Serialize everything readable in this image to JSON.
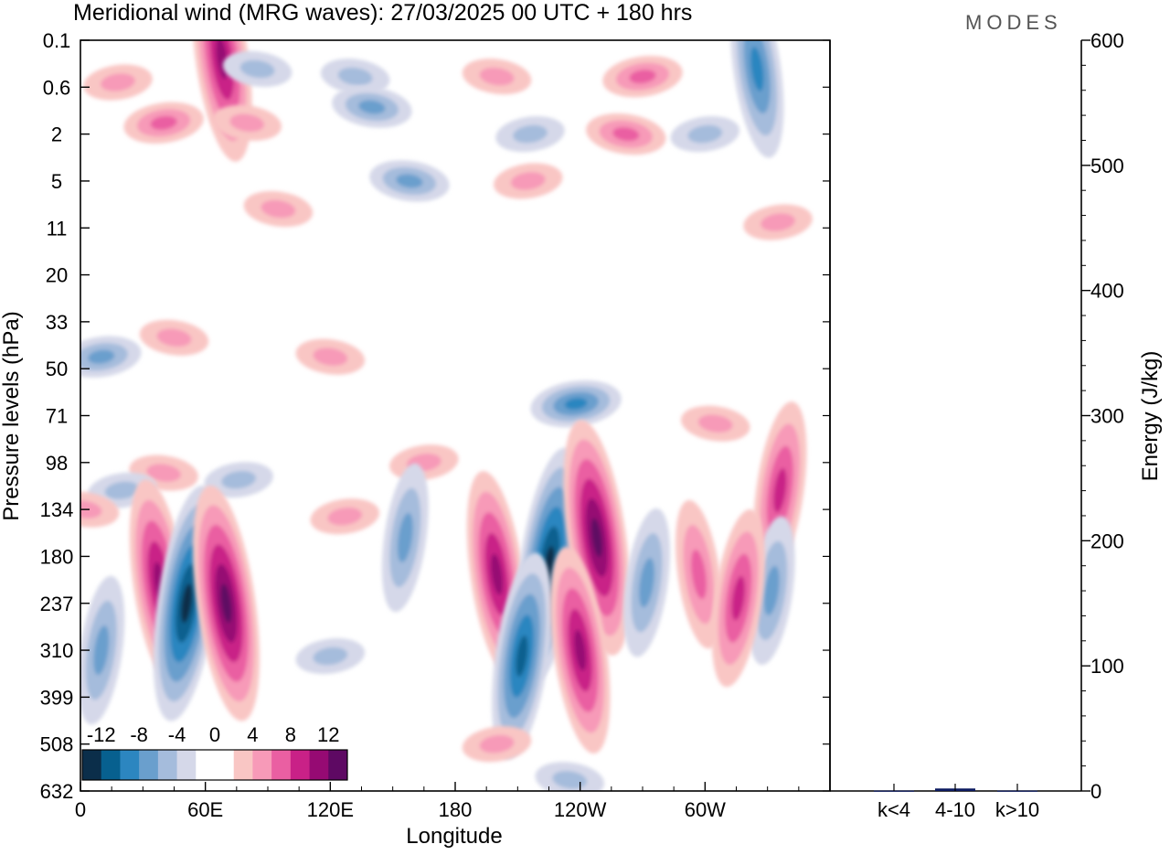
{
  "header": {
    "title": "Meridional wind (MRG waves):  27/03/2025  00 UTC  + 180 hrs",
    "logo": "MODES"
  },
  "chart_data": [
    {
      "type": "heatmap",
      "title": "Meridional wind (MRG waves):  27/03/2025  00 UTC  + 180 hrs",
      "xlabel": "Longitude",
      "ylabel": "Pressure levels (hPa)",
      "x_ticks": [
        "0",
        "60E",
        "120E",
        "180",
        "120W",
        "60W"
      ],
      "x_tick_degrees": [
        0,
        60,
        120,
        180,
        240,
        300
      ],
      "xlim": [
        0,
        360
      ],
      "y_ticks": [
        "0.1",
        "0.6",
        "2",
        "5",
        "11",
        "20",
        "33",
        "50",
        "71",
        "98",
        "134",
        "180",
        "237",
        "310",
        "399",
        "508",
        "632"
      ],
      "y_reversed": true,
      "colorbar": {
        "labels": [
          "-12",
          "-8",
          "-4",
          "0",
          "4",
          "8",
          "12"
        ],
        "colors": [
          "#0b2e4a",
          "#07608f",
          "#2c86c0",
          "#6a9fcd",
          "#a5bcdc",
          "#d5d8e9",
          "#ffffff",
          "#ffffff",
          "#f9c6c4",
          "#f79ab8",
          "#ea5fa2",
          "#c92187",
          "#960a73",
          "#5e0963"
        ]
      },
      "contours": [
        {
          "lon": 68,
          "level": "0.2",
          "value": 10
        },
        {
          "lon": 85,
          "level": "0.3",
          "value": -4
        },
        {
          "lon": 325,
          "level": "0.3",
          "value": -8
        },
        {
          "lon": 200,
          "level": "0.4",
          "value": 4
        },
        {
          "lon": 18,
          "level": "0.5",
          "value": 3
        },
        {
          "lon": 132,
          "level": "0.4",
          "value": -3
        },
        {
          "lon": 270,
          "level": "0.4",
          "value": 6
        },
        {
          "lon": 140,
          "level": "1",
          "value": -5
        },
        {
          "lon": 40,
          "level": "1.5",
          "value": 5
        },
        {
          "lon": 80,
          "level": "1.5",
          "value": 3
        },
        {
          "lon": 216,
          "level": "2",
          "value": -4
        },
        {
          "lon": 262,
          "level": "2",
          "value": 5
        },
        {
          "lon": 300,
          "level": "2",
          "value": -3
        },
        {
          "lon": 158,
          "level": "5",
          "value": -6
        },
        {
          "lon": 215,
          "level": "5",
          "value": 3
        },
        {
          "lon": 95,
          "level": "8",
          "value": 4
        },
        {
          "lon": 335,
          "level": "10",
          "value": 3
        },
        {
          "lon": 45,
          "level": "38",
          "value": 3
        },
        {
          "lon": 10,
          "level": "45",
          "value": -5
        },
        {
          "lon": 120,
          "level": "45",
          "value": 3
        },
        {
          "lon": 238,
          "level": "65",
          "value": -7
        },
        {
          "lon": 305,
          "level": "75",
          "value": 3
        },
        {
          "lon": 165,
          "level": "98",
          "value": 3
        },
        {
          "lon": 40,
          "level": "105",
          "value": 3
        },
        {
          "lon": 76,
          "level": "110",
          "value": -4
        },
        {
          "lon": 336,
          "level": "118",
          "value": 8
        },
        {
          "lon": 20,
          "level": "118",
          "value": -3
        },
        {
          "lon": 2,
          "level": "134",
          "value": 3
        },
        {
          "lon": 127,
          "level": "140",
          "value": 3
        },
        {
          "lon": 156,
          "level": "160",
          "value": -5
        },
        {
          "lon": 200,
          "level": "200",
          "value": 10
        },
        {
          "lon": 225,
          "level": "190",
          "value": -11
        },
        {
          "lon": 248,
          "level": "160",
          "value": 15
        },
        {
          "lon": 272,
          "level": "210",
          "value": -6
        },
        {
          "lon": 297,
          "level": "200",
          "value": 5
        },
        {
          "lon": 332,
          "level": "220",
          "value": -5
        },
        {
          "lon": 38,
          "level": "210",
          "value": 9
        },
        {
          "lon": 51,
          "level": "237",
          "value": -14
        },
        {
          "lon": 70,
          "level": "237",
          "value": 12
        },
        {
          "lon": 10,
          "level": "310",
          "value": -5
        },
        {
          "lon": 120,
          "level": "320",
          "value": -3
        },
        {
          "lon": 212,
          "level": "320",
          "value": -10
        },
        {
          "lon": 240,
          "level": "310",
          "value": 10
        },
        {
          "lon": 316,
          "level": "230",
          "value": 8
        },
        {
          "lon": 200,
          "level": "508",
          "value": 3
        },
        {
          "lon": 235,
          "level": "600",
          "value": -3
        }
      ]
    },
    {
      "type": "bar",
      "ylabel": "Energy (J/kg)",
      "categories": [
        "k<4",
        "4-10",
        "k>10"
      ],
      "values": [
        0.3,
        2,
        0.3
      ],
      "ylim": [
        0,
        600
      ],
      "y_ticks": [
        "0",
        "100",
        "200",
        "300",
        "400",
        "500",
        "600"
      ],
      "bar_color": "#0b1a60"
    }
  ]
}
